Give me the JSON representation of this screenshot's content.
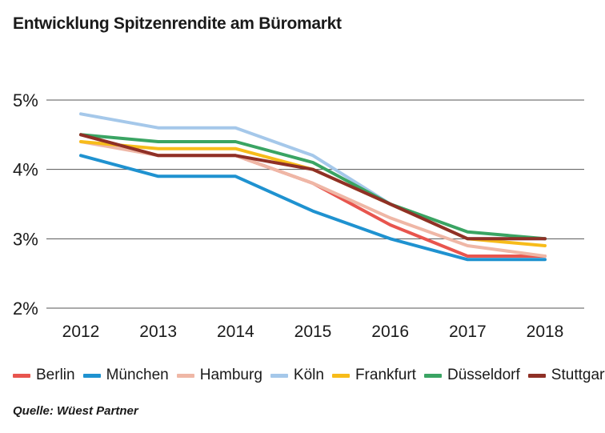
{
  "title": "Entwicklung Spitzenrendite am Büromarkt",
  "source": "Quelle: Wüest Partner",
  "chart_data": {
    "type": "line",
    "title": "Entwicklung Spitzenrendite am Büromarkt",
    "xlabel": "",
    "ylabel": "",
    "x": [
      "2012",
      "2013",
      "2014",
      "2015",
      "2016",
      "2017",
      "2018"
    ],
    "ylim": [
      2,
      5
    ],
    "yticks": [
      2,
      3,
      4,
      5
    ],
    "ytick_labels": [
      "2%",
      "3%",
      "4%",
      "5%"
    ],
    "grid": true,
    "legend_position": "bottom",
    "series": [
      {
        "name": "Berlin",
        "color": "#e8554e",
        "values": [
          4.5,
          4.2,
          4.2,
          3.8,
          3.2,
          2.75,
          2.75
        ]
      },
      {
        "name": "München",
        "color": "#1f92d0",
        "values": [
          4.2,
          3.9,
          3.9,
          3.4,
          3.0,
          2.7,
          2.7
        ]
      },
      {
        "name": "Hamburg",
        "color": "#efb7a6",
        "values": [
          4.4,
          4.2,
          4.2,
          3.8,
          3.3,
          2.9,
          2.75
        ]
      },
      {
        "name": "Köln",
        "color": "#a5c8ea",
        "values": [
          4.8,
          4.6,
          4.6,
          4.2,
          3.5,
          3.0,
          3.0
        ]
      },
      {
        "name": "Frankfurt",
        "color": "#f7bc1a",
        "values": [
          4.4,
          4.3,
          4.3,
          4.0,
          3.5,
          3.0,
          2.9
        ]
      },
      {
        "name": "Düsseldorf",
        "color": "#3aa463",
        "values": [
          4.5,
          4.4,
          4.4,
          4.1,
          3.5,
          3.1,
          3.0
        ]
      },
      {
        "name": "Stuttgart",
        "color": "#8f3026",
        "values": [
          4.5,
          4.2,
          4.2,
          4.0,
          3.5,
          3.0,
          3.0
        ]
      }
    ]
  }
}
